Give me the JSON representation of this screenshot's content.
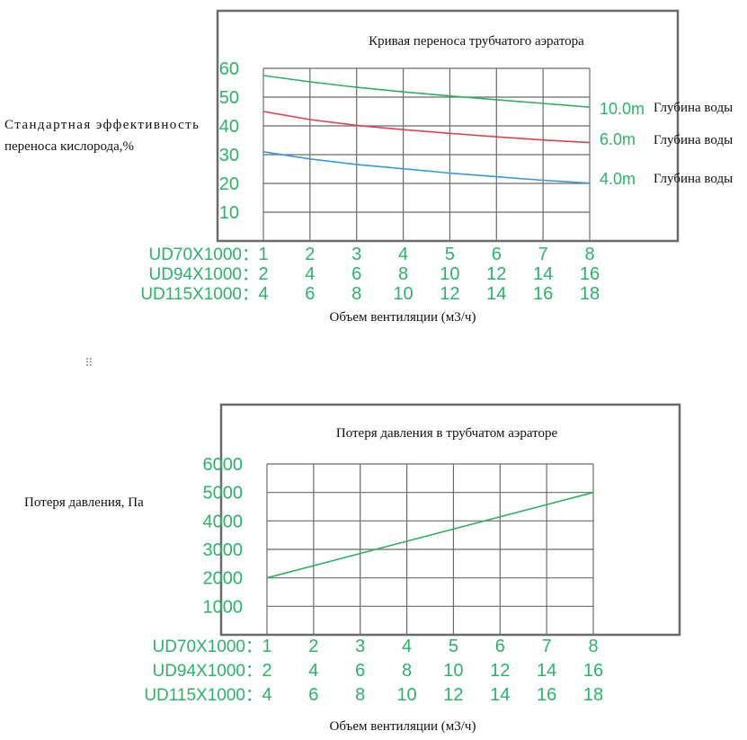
{
  "chart_data": [
    {
      "type": "line",
      "title": "Кривая переноса трубчатого аэратора",
      "ylabel_line1": "Стандартная эффективность",
      "ylabel_line2": "переноса кислорода,%",
      "xlabel": "Объем вентиляции (м3/ч)",
      "yticks": [
        "60",
        "50",
        "40",
        "30",
        "20",
        "10"
      ],
      "ylim": [
        0,
        60
      ],
      "x_rows": [
        {
          "label": "UD70X1000：",
          "ticks": [
            "1",
            "2",
            "3",
            "4",
            "5",
            "6",
            "7",
            "8"
          ]
        },
        {
          "label": "UD94X1000：",
          "ticks": [
            "2",
            "4",
            "6",
            "8",
            "10",
            "12",
            "14",
            "16"
          ]
        },
        {
          "label": "UD115X1000：",
          "ticks": [
            "4",
            "6",
            "8",
            "10",
            "12",
            "14",
            "16",
            "18"
          ]
        }
      ],
      "x": [
        1,
        2,
        3,
        4,
        5,
        6,
        7,
        8
      ],
      "series": [
        {
          "name": "10.0m",
          "suffix": "Глубина воды",
          "color": "#2fae5f",
          "values": [
            57.5,
            55.3,
            53.4,
            51.8,
            50.4,
            49.1,
            47.8,
            46.5
          ]
        },
        {
          "name": "6.0m",
          "suffix": "Глубина воды",
          "color": "#e0434b",
          "values": [
            45,
            42.2,
            40.2,
            38.7,
            37.4,
            36.2,
            35.1,
            34.2
          ]
        },
        {
          "name": "4.0m",
          "suffix": "Глубина воды",
          "color": "#3a98dd",
          "values": [
            31,
            28.5,
            26.6,
            25.1,
            23.6,
            22.3,
            21.1,
            20.1
          ]
        }
      ],
      "grid": true
    },
    {
      "type": "line",
      "title": "Потеря давления в трубчатом аэраторе",
      "ylabel": "Потеря давления, Па",
      "xlabel": "Объем вентиляции (м3/ч)",
      "yticks": [
        "6000",
        "5000",
        "4000",
        "3000",
        "2000",
        "1000"
      ],
      "ylim": [
        0,
        6000
      ],
      "x_rows": [
        {
          "label": "UD70X1000：",
          "ticks": [
            "1",
            "2",
            "3",
            "4",
            "5",
            "6",
            "7",
            "8"
          ]
        },
        {
          "label": "UD94X1000：",
          "ticks": [
            "2",
            "4",
            "6",
            "8",
            "10",
            "12",
            "14",
            "16"
          ]
        },
        {
          "label": "UD115X1000：",
          "ticks": [
            "4",
            "6",
            "8",
            "10",
            "12",
            "14",
            "16",
            "18"
          ]
        }
      ],
      "x": [
        1,
        8
      ],
      "series": [
        {
          "color": "#2fae5f",
          "values": [
            2000,
            5000
          ]
        }
      ],
      "grid": true
    }
  ],
  "drag_handle_icon": "drag-handle-icon"
}
